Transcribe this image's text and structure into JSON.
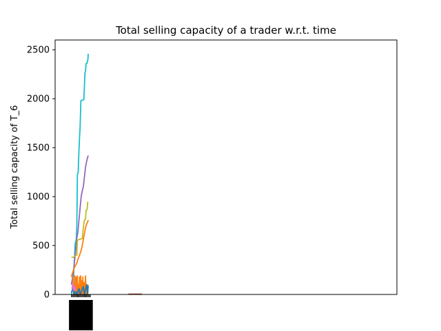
{
  "chart_data": {
    "type": "line",
    "title": "Total selling capacity of a trader w.r.t. time",
    "xlabel": "",
    "ylabel": "Total selling capacity of T_6",
    "ylim": [
      0,
      2600
    ],
    "xlim": [
      -3,
      60
    ],
    "y_ticks": [
      0,
      500,
      1000,
      1500,
      2000,
      2500
    ],
    "x_tick_count": 26,
    "x_tick_range": [
      0,
      3.5
    ],
    "grid": false,
    "legend": "none",
    "series": [
      {
        "color": "#17becf",
        "points": [
          [
            0.0,
            0
          ],
          [
            0.3,
            80
          ],
          [
            0.5,
            300
          ],
          [
            0.7,
            520
          ],
          [
            0.9,
            560
          ],
          [
            1.0,
            700
          ],
          [
            1.1,
            1220
          ],
          [
            1.25,
            1250
          ],
          [
            1.35,
            1400
          ],
          [
            1.5,
            1600
          ],
          [
            1.6,
            1700
          ],
          [
            1.75,
            1980
          ],
          [
            2.0,
            1985
          ],
          [
            2.3,
            1990
          ],
          [
            2.5,
            2260
          ],
          [
            2.6,
            2280
          ],
          [
            2.7,
            2360
          ],
          [
            2.85,
            2360
          ],
          [
            3.05,
            2400
          ],
          [
            3.1,
            2460
          ]
        ]
      },
      {
        "color": "#9467bd",
        "points": [
          [
            0.0,
            100
          ],
          [
            0.3,
            200
          ],
          [
            0.5,
            300
          ],
          [
            0.7,
            400
          ],
          [
            0.9,
            500
          ],
          [
            1.0,
            580
          ],
          [
            1.2,
            640
          ],
          [
            1.4,
            760
          ],
          [
            1.6,
            880
          ],
          [
            1.8,
            1000
          ],
          [
            2.0,
            1060
          ],
          [
            2.2,
            1100
          ],
          [
            2.4,
            1200
          ],
          [
            2.6,
            1300
          ],
          [
            2.8,
            1360
          ],
          [
            3.0,
            1400
          ],
          [
            3.1,
            1420
          ]
        ]
      },
      {
        "color": "#bcbd22",
        "points": [
          [
            0.0,
            380
          ],
          [
            0.4,
            380
          ],
          [
            0.6,
            390
          ],
          [
            0.8,
            400
          ],
          [
            1.0,
            400
          ],
          [
            1.1,
            550
          ],
          [
            1.3,
            560
          ],
          [
            1.6,
            565
          ],
          [
            2.0,
            570
          ],
          [
            2.2,
            680
          ],
          [
            2.4,
            760
          ],
          [
            2.6,
            770
          ],
          [
            2.7,
            860
          ],
          [
            2.9,
            870
          ],
          [
            3.0,
            940
          ],
          [
            3.1,
            945
          ]
        ]
      },
      {
        "color": "#ff7f0e",
        "points": [
          [
            0.0,
            180
          ],
          [
            0.2,
            220
          ],
          [
            0.4,
            250
          ],
          [
            0.6,
            280
          ],
          [
            0.8,
            300
          ],
          [
            1.0,
            320
          ],
          [
            1.2,
            360
          ],
          [
            1.5,
            400
          ],
          [
            1.8,
            450
          ],
          [
            2.0,
            500
          ],
          [
            2.2,
            560
          ],
          [
            2.4,
            620
          ],
          [
            2.6,
            680
          ],
          [
            2.8,
            720
          ],
          [
            3.0,
            740
          ],
          [
            3.1,
            760
          ]
        ]
      },
      {
        "color": "#ff7f0e",
        "points": [
          [
            0.3,
            180
          ],
          [
            0.4,
            0
          ],
          [
            0.5,
            120
          ],
          [
            0.55,
            0
          ],
          [
            0.65,
            190
          ],
          [
            0.75,
            0
          ],
          [
            0.9,
            180
          ],
          [
            1.0,
            0
          ],
          [
            1.1,
            190
          ],
          [
            1.2,
            0
          ],
          [
            1.3,
            100
          ],
          [
            1.4,
            0
          ],
          [
            1.5,
            180
          ],
          [
            1.6,
            0
          ],
          [
            1.7,
            190
          ],
          [
            1.8,
            0
          ],
          [
            1.9,
            140
          ],
          [
            2.0,
            0
          ],
          [
            2.1,
            180
          ],
          [
            2.2,
            0
          ],
          [
            2.35,
            120
          ],
          [
            2.45,
            0
          ],
          [
            2.6,
            190
          ],
          [
            2.7,
            0
          ],
          [
            2.85,
            100
          ],
          [
            2.95,
            0
          ],
          [
            3.05,
            100
          ]
        ]
      },
      {
        "color": "#1f77b4",
        "points": [
          [
            0.0,
            20
          ],
          [
            0.3,
            60
          ],
          [
            0.5,
            0
          ],
          [
            0.8,
            40
          ],
          [
            1.0,
            0
          ],
          [
            1.4,
            60
          ],
          [
            1.6,
            0
          ],
          [
            2.2,
            80
          ],
          [
            2.4,
            0
          ],
          [
            2.8,
            100
          ],
          [
            3.0,
            0
          ],
          [
            3.1,
            90
          ]
        ]
      },
      {
        "color": "#e377c2",
        "points": [
          [
            0.1,
            60
          ],
          [
            0.25,
            110
          ],
          [
            0.4,
            40
          ],
          [
            0.6,
            90
          ],
          [
            0.8,
            30
          ]
        ]
      },
      {
        "color": "#d62728",
        "points": [
          [
            10.5,
            2
          ],
          [
            13.0,
            2
          ]
        ]
      },
      {
        "color": "#8c564b",
        "points": [
          [
            10.5,
            3
          ],
          [
            13.0,
            3
          ]
        ]
      }
    ]
  }
}
